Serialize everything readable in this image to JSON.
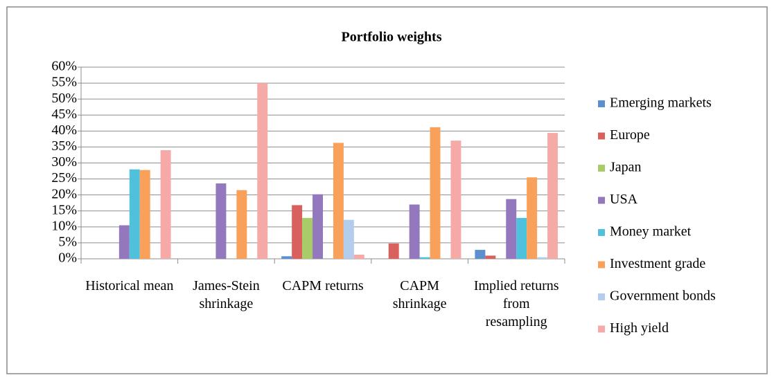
{
  "chart_data": {
    "type": "bar",
    "title": "Portfolio weights",
    "categories": [
      "Historical mean",
      "James-Stein shrinkage",
      "CAPM returns",
      "CAPM shrinkage",
      "Implied returns from resampling"
    ],
    "series": [
      {
        "name": "Emerging markets",
        "color": "#5b8fd0",
        "values": [
          0,
          0,
          0.8,
          0,
          2.8
        ]
      },
      {
        "name": "Europe",
        "color": "#d9615d",
        "values": [
          0,
          0,
          16.8,
          4.8,
          1
        ]
      },
      {
        "name": "Japan",
        "color": "#a8cc68",
        "values": [
          0,
          0,
          12.8,
          0,
          0
        ]
      },
      {
        "name": "USA",
        "color": "#9478bd",
        "values": [
          10.5,
          23.6,
          20.2,
          17,
          18.7
        ]
      },
      {
        "name": "Money market",
        "color": "#4fc1dc",
        "values": [
          28,
          0,
          0,
          0.5,
          12.8
        ]
      },
      {
        "name": "Investment grade",
        "color": "#f9a15a",
        "values": [
          27.8,
          21.5,
          36.3,
          41.2,
          25.5
        ]
      },
      {
        "name": "Government bonds",
        "color": "#b3cdef",
        "values": [
          0,
          0,
          12.2,
          0,
          0.5
        ]
      },
      {
        "name": "High yield",
        "color": "#f6aaa8",
        "values": [
          34,
          55,
          1.3,
          37,
          39.4
        ]
      }
    ],
    "ylim": [
      0,
      60
    ],
    "yticks": [
      {
        "value": 0,
        "label": "0%"
      },
      {
        "value": 5,
        "label": "5%"
      },
      {
        "value": 10,
        "label": "10%"
      },
      {
        "value": 15,
        "label": "15%"
      },
      {
        "value": 20,
        "label": "20%"
      },
      {
        "value": 25,
        "label": "25%"
      },
      {
        "value": 30,
        "label": "30%"
      },
      {
        "value": 35,
        "label": "35%"
      },
      {
        "value": 40,
        "label": "40%"
      },
      {
        "value": 45,
        "label": "45%"
      },
      {
        "value": 50,
        "label": "50%"
      },
      {
        "value": 55,
        "label": "55%"
      },
      {
        "value": 60,
        "label": "60%"
      }
    ],
    "grid": true,
    "legend": "right"
  }
}
